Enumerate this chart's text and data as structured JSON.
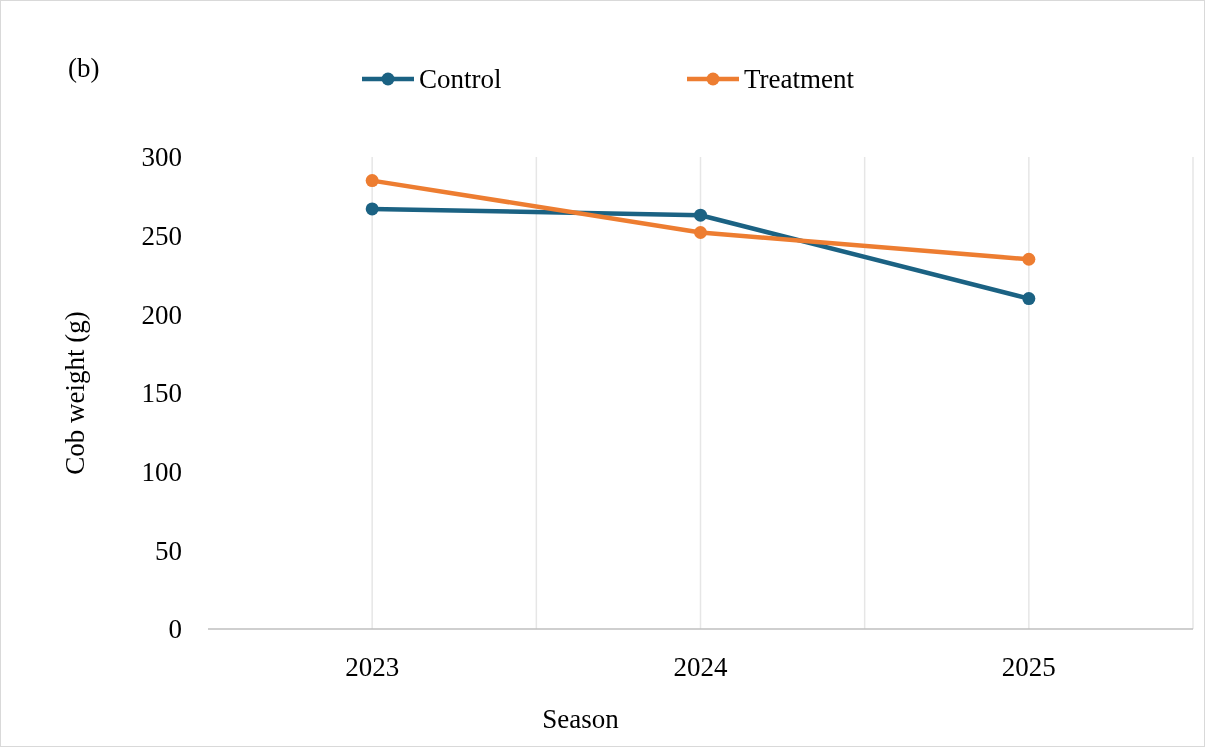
{
  "chart_data": {
    "type": "line",
    "title": "(b)",
    "xlabel": "Season",
    "ylabel": "Cob weight (g)",
    "categories": [
      "2023",
      "2024",
      "2025"
    ],
    "series": [
      {
        "name": "Control",
        "color": "#1b6283",
        "values": [
          267,
          263,
          210
        ]
      },
      {
        "name": "Treatment",
        "color": "#ed7d31",
        "values": [
          285,
          252,
          235
        ]
      }
    ],
    "ylim": [
      0,
      300
    ],
    "yticks": [
      0,
      50,
      100,
      150,
      200,
      250,
      300
    ],
    "grid": "x",
    "legend": "top",
    "marker": "circle",
    "line_style": "solid"
  }
}
